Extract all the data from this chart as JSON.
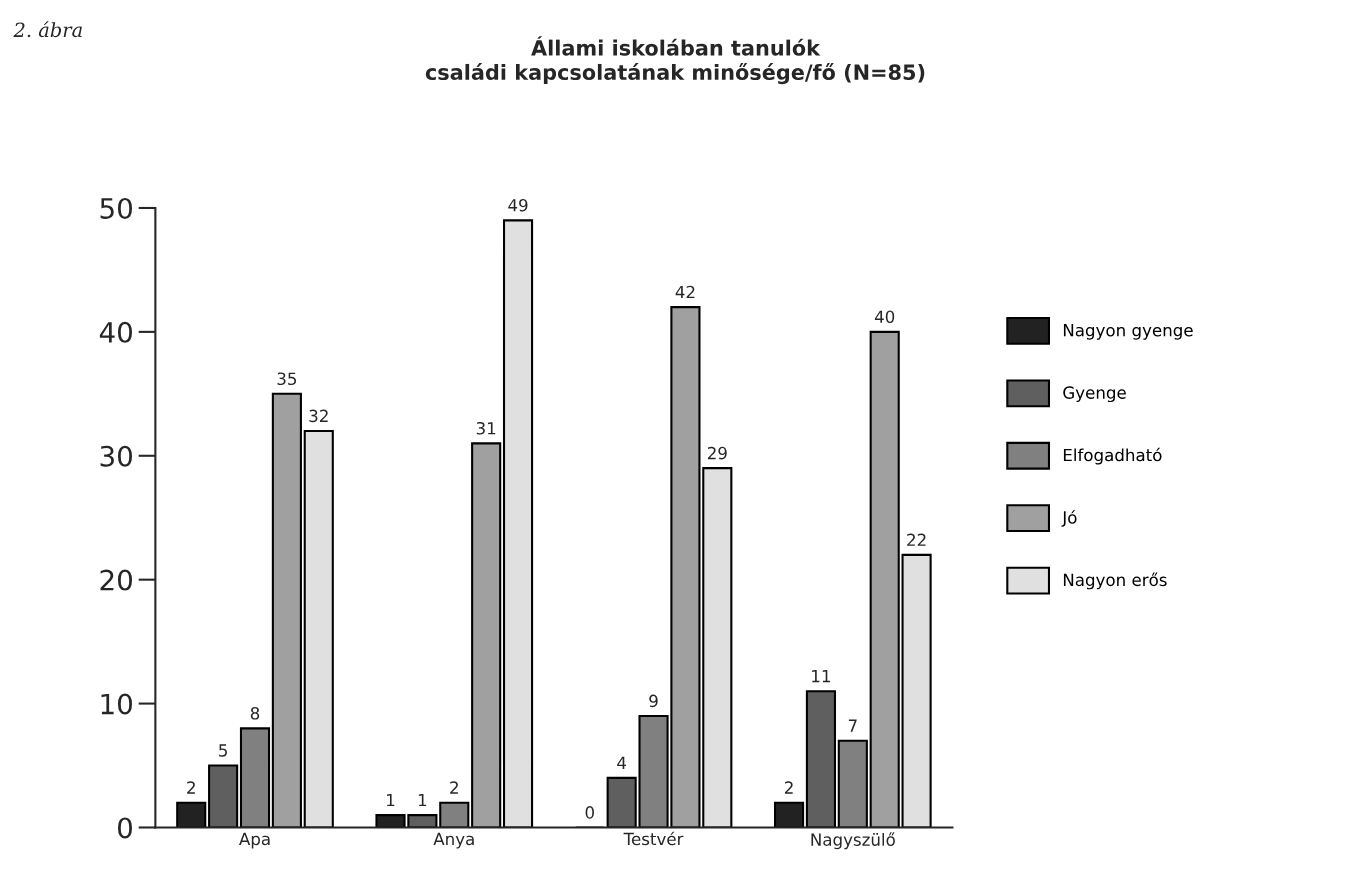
{
  "chart_data": {
    "type": "bar",
    "title": "Állami iskolában tanulók\ncsaládi kapcsolatának minősége/fő (N=85)",
    "annotations": [
      "2. ábra"
    ],
    "categories": [
      "Apa",
      "Anya",
      "Testvér",
      "Nagyszülő"
    ],
    "series": [
      {
        "name": "Nagyon gyenge",
        "color": "#222222",
        "values": [
          2,
          1,
          0,
          2
        ]
      },
      {
        "name": "Gyenge",
        "color": "#5f5f5f",
        "values": [
          5,
          1,
          4,
          11
        ]
      },
      {
        "name": "Elfogadható",
        "color": "#808080",
        "values": [
          8,
          2,
          9,
          7
        ]
      },
      {
        "name": "Jó",
        "color": "#a0a0a0",
        "values": [
          35,
          31,
          42,
          40
        ]
      },
      {
        "name": "Nagyon erős",
        "color": "#e0e0e0",
        "values": [
          32,
          49,
          29,
          22
        ]
      }
    ],
    "ylim": [
      0,
      50
    ],
    "yticks": [
      0,
      10,
      20,
      30,
      40,
      50
    ],
    "data_labels": true,
    "grid": false,
    "legend": "right"
  }
}
